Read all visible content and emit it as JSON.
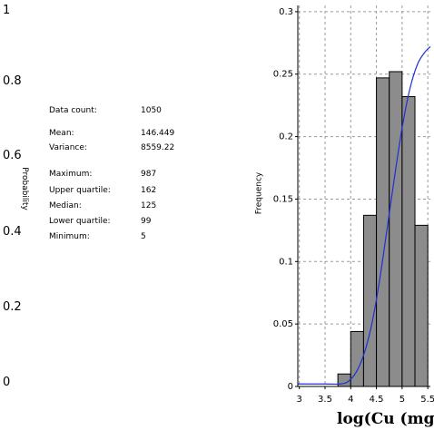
{
  "left_panel": {
    "probability_label": "Probability",
    "probability_ticks": [
      "1",
      "0.8",
      "0.6",
      "0.4",
      "0.2",
      "0"
    ],
    "stats": [
      {
        "label": "Data count:",
        "value": "1050"
      },
      {
        "label": "Mean:",
        "value": "146.449"
      },
      {
        "label": "Variance:",
        "value": "8559.22"
      },
      {
        "label": "Maximum:",
        "value": "987"
      },
      {
        "label": "Upper quartile:",
        "value": "162"
      },
      {
        "label": "Median:",
        "value": "125"
      },
      {
        "label": "Lower quartile:",
        "value": "99"
      },
      {
        "label": "Minimum:",
        "value": "5"
      }
    ]
  },
  "chart_data": {
    "type": "bar",
    "title": "",
    "xlabel": "log(Cu (mg",
    "ylabel": "Frequency",
    "x_ticks": [
      "3",
      "3.5",
      "4",
      "4.5",
      "5",
      "5.5"
    ],
    "y_ticks": [
      "0",
      "0.05",
      "0.1",
      "0.15",
      "0.2",
      "0.25",
      "0.3"
    ],
    "xlim": [
      2.97,
      5.55
    ],
    "ylim": [
      0,
      0.305
    ],
    "bin_width": 0.25,
    "bins": [
      {
        "start": 3.75,
        "value": 0.01
      },
      {
        "start": 4.0,
        "value": 0.044
      },
      {
        "start": 4.25,
        "value": 0.137
      },
      {
        "start": 4.5,
        "value": 0.247
      },
      {
        "start": 4.75,
        "value": 0.252
      },
      {
        "start": 5.0,
        "value": 0.232
      },
      {
        "start": 5.25,
        "value": 0.129
      }
    ],
    "cdf_curve": {
      "color": "#1f2fd6",
      "x": [
        2.97,
        3.5,
        3.8,
        3.95,
        4.1,
        4.25,
        4.4,
        4.55,
        4.7,
        4.85,
        5.0,
        5.15,
        5.3,
        5.45,
        5.55
      ],
      "y": [
        0.002,
        0.002,
        0.002,
        0.004,
        0.011,
        0.025,
        0.048,
        0.082,
        0.124,
        0.167,
        0.207,
        0.238,
        0.258,
        0.268,
        0.272
      ]
    },
    "grid": true,
    "bar_color": "#8c8c8c"
  }
}
